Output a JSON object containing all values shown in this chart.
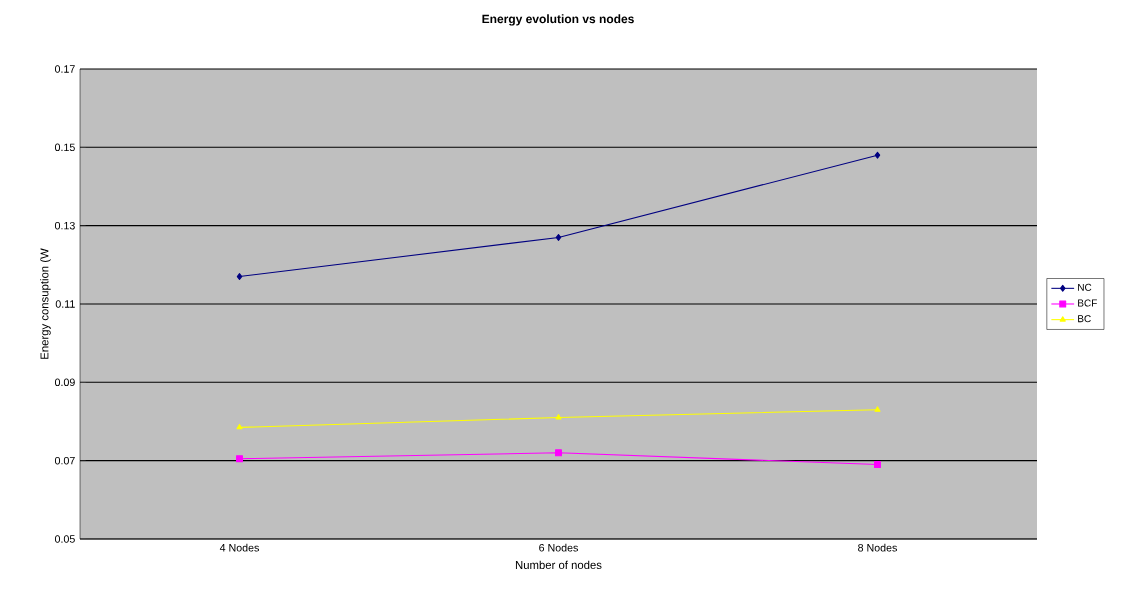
{
  "chart_data": {
    "type": "line",
    "title": "Energy evolution vs nodes",
    "xlabel": "Number of nodes",
    "ylabel": "Energy consuption (W",
    "categories": [
      "4 Nodes",
      "6 Nodes",
      "8 Nodes"
    ],
    "series": [
      {
        "name": "NC",
        "color": "#000080",
        "marker": "diamond",
        "values": [
          0.117,
          0.127,
          0.148
        ]
      },
      {
        "name": "BCF",
        "color": "#ff00ff",
        "marker": "square",
        "values": [
          0.0705,
          0.072,
          0.069
        ]
      },
      {
        "name": "BC",
        "color": "#ffff00",
        "marker": "triangle",
        "values": [
          0.0785,
          0.081,
          0.083
        ]
      }
    ],
    "ylim": [
      0.05,
      0.17
    ],
    "yticks": [
      0.05,
      0.07,
      0.09,
      0.11,
      0.13,
      0.15,
      0.17
    ],
    "grid": "y",
    "legend": "right"
  }
}
